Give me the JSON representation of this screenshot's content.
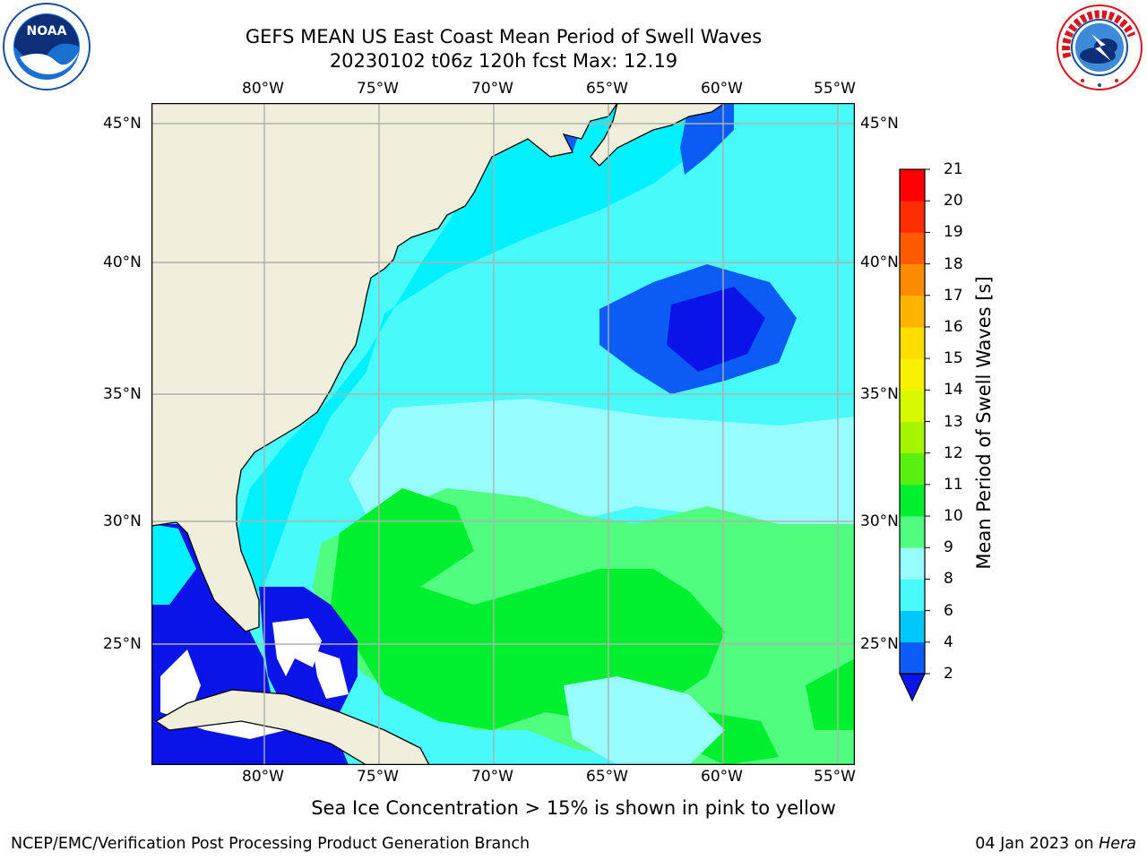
{
  "header": {
    "title_line1": "GEFS MEAN US East Coast Mean Period of Swell Waves",
    "title_line2": "20230102 t06z 120h fcst   Max: 12.19"
  },
  "logos": {
    "left": {
      "name": "noaa-logo",
      "text": "NOAA",
      "ring_text": "NATIONAL OCEANIC AND ATMOSPHERIC ADMINISTRATION · U.S. DEPARTMENT OF COMMERCE"
    },
    "right": {
      "name": "nws-logo",
      "ring_text": "NATIONAL WEATHER SERVICE"
    }
  },
  "map": {
    "lon_ticks": [
      "80°W",
      "75°W",
      "70°W",
      "65°W",
      "60°W",
      "55°W"
    ],
    "lat_ticks": [
      "45°N",
      "40°N",
      "35°N",
      "30°N",
      "25°N"
    ],
    "lon_range": [
      -85,
      -54.3
    ],
    "lat_range": [
      20.5,
      45.7
    ]
  },
  "colorbar": {
    "label": "Mean Period of Swell Waves [s]",
    "ticks": [
      "2",
      "4",
      "6",
      "8",
      "9",
      "10",
      "11",
      "12",
      "13",
      "14",
      "15",
      "16",
      "17",
      "18",
      "19",
      "20",
      "21"
    ],
    "colors": [
      "#0a5cf5",
      "#00c8ff",
      "#48fafa",
      "#98fdfd",
      "#51fd7e",
      "#00f030",
      "#58f010",
      "#a6f500",
      "#d6fa00",
      "#f7f000",
      "#ffdc00",
      "#ffb400",
      "#ff8c00",
      "#ff5a00",
      "#ff2d00",
      "#ff0000"
    ],
    "extend_min_color": "#0a14e6"
  },
  "colors": {
    "land": "#efefdc",
    "coast": "#000000",
    "grid": "#b0b0b0",
    "no_data": "#ffffff"
  },
  "footer": {
    "note": "Sea Ice Concentration > 15% is shown in pink to yellow",
    "credit": "NCEP/EMC/Verification Post Processing Product Generation Branch",
    "date": "04 Jan 2023 on",
    "host": "Hera"
  }
}
